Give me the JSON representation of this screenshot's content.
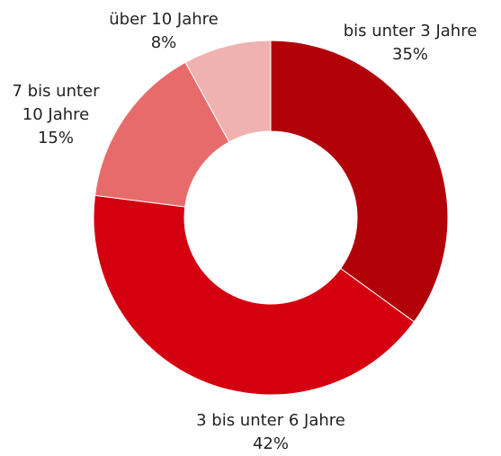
{
  "chart_data": {
    "type": "donut",
    "categories": [
      "bis unter 3 Jahre",
      "3 bis unter 6 Jahre",
      "7 bis unter 10 Jahre",
      "über 10 Jahre"
    ],
    "values": [
      35,
      42,
      15,
      8
    ],
    "value_labels": [
      "35%",
      "42%",
      "15%",
      "8%"
    ],
    "colors": [
      "#b20009",
      "#d4000f",
      "#e86b6b",
      "#f0b1b1"
    ]
  }
}
